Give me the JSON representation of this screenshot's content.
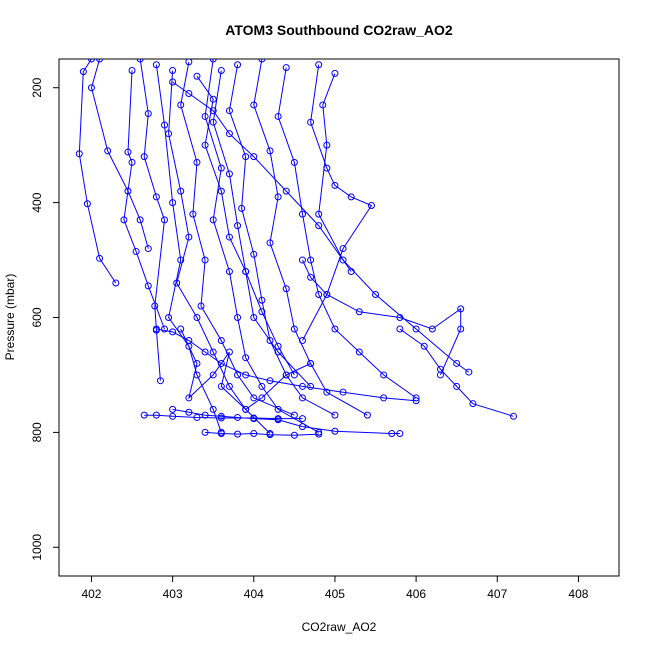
{
  "chart_data": {
    "type": "line",
    "title": "ATOM3 Southbound CO2raw_AO2",
    "xlabel": "CO2raw_AO2",
    "ylabel": "Pressure (mbar)",
    "xlim": [
      401.6,
      408.5
    ],
    "ylim": [
      1050,
      150
    ],
    "y_reversed": true,
    "xticks": [
      402,
      403,
      404,
      405,
      406,
      407,
      408
    ],
    "yticks": [
      200,
      400,
      600,
      800,
      1000
    ],
    "grid": false,
    "legend": "none",
    "marker": "open-circle",
    "series_color": "#0000ff",
    "series": [
      {
        "x": [
          402.0,
          401.9,
          401.85,
          401.95,
          402.1,
          402.3
        ],
        "y": [
          150,
          172,
          315,
          402,
          497,
          540
        ]
      },
      {
        "x": [
          402.1,
          402.0,
          402.2,
          402.45,
          402.6,
          402.7
        ],
        "y": [
          150,
          200,
          310,
          380,
          430,
          480
        ]
      },
      {
        "x": [
          402.5,
          402.45,
          402.5,
          402.4,
          402.55,
          402.7,
          402.9
        ],
        "y": [
          170,
          312,
          330,
          430,
          485,
          545,
          620
        ]
      },
      {
        "x": [
          402.6,
          402.7,
          402.65,
          402.8,
          402.9,
          402.78,
          402.8,
          402.85
        ],
        "y": [
          150,
          245,
          320,
          390,
          430,
          580,
          622,
          710
        ]
      },
      {
        "x": [
          402.8,
          402.9,
          403.0,
          403.1,
          402.95,
          403.2,
          403.3,
          403.5,
          403.6
        ],
        "y": [
          160,
          265,
          400,
          500,
          600,
          650,
          700,
          760,
          800
        ]
      },
      {
        "x": [
          403.0,
          402.95,
          403.1,
          403.2,
          403.05,
          403.3,
          403.5,
          403.7,
          403.9,
          404.2
        ],
        "y": [
          170,
          280,
          380,
          460,
          540,
          600,
          660,
          720,
          760,
          802
        ]
      },
      {
        "x": [
          403.2,
          403.1,
          403.3,
          403.25,
          403.4,
          403.35,
          403.6,
          403.8,
          404.0,
          404.5
        ],
        "y": [
          155,
          230,
          330,
          420,
          500,
          580,
          640,
          700,
          740,
          770
        ]
      },
      {
        "x": [
          403.5,
          403.4,
          403.6,
          403.5,
          403.7,
          403.8,
          403.9,
          404.1,
          404.3,
          404.8
        ],
        "y": [
          150,
          250,
          340,
          430,
          520,
          600,
          670,
          720,
          760,
          800
        ]
      },
      {
        "x": [
          403.8,
          403.7,
          403.9,
          403.85,
          404.0,
          404.1,
          404.2,
          404.4,
          404.6,
          405.0
        ],
        "y": [
          160,
          240,
          320,
          410,
          490,
          570,
          640,
          700,
          740,
          770
        ]
      },
      {
        "x": [
          404.1,
          404.0,
          404.2,
          404.3,
          404.2,
          404.4,
          404.5,
          404.7,
          404.9,
          405.4
        ],
        "y": [
          150,
          230,
          310,
          390,
          470,
          550,
          620,
          680,
          730,
          770
        ]
      },
      {
        "x": [
          404.4,
          404.3,
          404.5,
          404.6,
          404.7,
          404.8,
          405.0,
          405.3,
          405.6,
          406.0
        ],
        "y": [
          165,
          250,
          330,
          420,
          500,
          560,
          620,
          660,
          700,
          740
        ]
      },
      {
        "x": [
          404.8,
          404.7,
          404.9,
          405.0,
          405.2,
          405.45,
          405.1,
          404.9,
          404.6
        ],
        "y": [
          160,
          260,
          340,
          370,
          390,
          405,
          480,
          560,
          640
        ]
      },
      {
        "x": [
          405.0,
          404.85,
          404.9,
          404.8,
          405.1,
          405.5,
          406.0,
          406.5,
          406.65
        ],
        "y": [
          175,
          230,
          300,
          420,
          500,
          560,
          620,
          680,
          695
        ]
      },
      {
        "x": [
          404.6,
          404.7,
          404.9,
          405.3,
          405.8,
          406.2,
          406.55,
          406.55,
          406.3
        ],
        "y": [
          500,
          530,
          560,
          590,
          600,
          620,
          585,
          620,
          700
        ]
      },
      {
        "x": [
          405.8,
          406.1,
          406.3,
          406.5,
          406.7,
          407.2
        ],
        "y": [
          620,
          650,
          690,
          720,
          750,
          772
        ]
      },
      {
        "x": [
          403.0,
          403.2,
          403.4,
          403.6,
          403.8,
          404.0,
          404.3,
          404.6,
          405.0,
          405.7,
          405.8
        ],
        "y": [
          760,
          765,
          770,
          772,
          774,
          776,
          778,
          790,
          798,
          802,
          802
        ]
      },
      {
        "x": [
          403.4,
          403.6,
          403.8,
          404.0,
          404.2,
          404.5,
          404.8
        ],
        "y": [
          800,
          802,
          803,
          802,
          804,
          805,
          803
        ]
      },
      {
        "x": [
          403.1,
          403.3,
          403.2,
          403.5,
          403.7,
          403.6,
          403.9,
          404.1,
          404.4,
          404.7
        ],
        "y": [
          620,
          680,
          740,
          700,
          660,
          720,
          760,
          740,
          700,
          680
        ]
      },
      {
        "x": [
          402.8,
          403.0,
          403.2,
          403.4,
          403.6,
          403.9,
          404.2,
          404.6,
          405.1,
          405.6,
          406.0
        ],
        "y": [
          620,
          625,
          640,
          660,
          680,
          700,
          710,
          720,
          730,
          740,
          745
        ]
      },
      {
        "x": [
          403.3,
          403.5,
          403.4,
          403.6,
          403.7,
          403.9,
          404.0,
          404.3,
          404.7
        ],
        "y": [
          180,
          220,
          300,
          380,
          460,
          520,
          600,
          660,
          720
        ]
      },
      {
        "x": [
          403.6,
          403.5,
          403.7,
          403.8,
          403.9,
          404.1,
          404.3,
          404.5
        ],
        "y": [
          170,
          260,
          350,
          440,
          520,
          590,
          650,
          700
        ]
      },
      {
        "x": [
          402.65,
          402.8,
          403.0,
          403.3,
          403.6,
          404.0,
          404.3,
          404.6
        ],
        "y": [
          770,
          770,
          772,
          774,
          775,
          775,
          776,
          776
        ]
      },
      {
        "x": [
          403.0,
          403.2,
          403.5,
          403.7,
          404.0,
          404.4,
          404.8,
          405.2
        ],
        "y": [
          190,
          210,
          240,
          280,
          320,
          380,
          440,
          520
        ]
      }
    ]
  }
}
